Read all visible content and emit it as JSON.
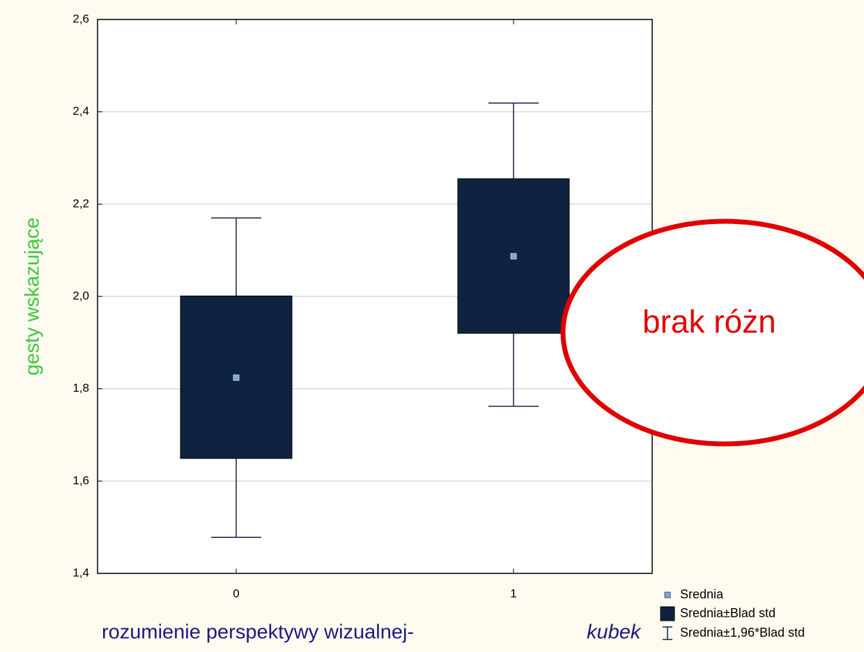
{
  "chart_data": {
    "type": "box",
    "categories": [
      "0",
      "1"
    ],
    "mean": [
      1.824,
      2.087
    ],
    "box_low": [
      1.649,
      1.92
    ],
    "box_high": [
      2.001,
      2.255
    ],
    "whisker_low": [
      1.478,
      1.762
    ],
    "whisker_high": [
      2.17,
      2.419
    ],
    "ylim": [
      1.4,
      2.6
    ],
    "yticks": [
      {
        "value": 1.4,
        "label": "1,4"
      },
      {
        "value": 1.6,
        "label": "1,6"
      },
      {
        "value": 1.8,
        "label": "1,8"
      },
      {
        "value": 2.0,
        "label": "2,0"
      },
      {
        "value": 2.2,
        "label": "2,2"
      },
      {
        "value": 2.4,
        "label": "2,4"
      },
      {
        "value": 2.6,
        "label": "2,6"
      }
    ],
    "grid": true,
    "ylabel": "gesty wskazujące",
    "xlabel": "rozumienie perspektywy wizualnej-",
    "xlabel_emphasis": "kubek",
    "box_color": "#0f2340",
    "mean_color": "#7fa6d6",
    "legend": [
      "Srednia",
      "Srednia±Blad std",
      "Srednia±1,96*Blad std"
    ],
    "annotation": "brak różn"
  }
}
